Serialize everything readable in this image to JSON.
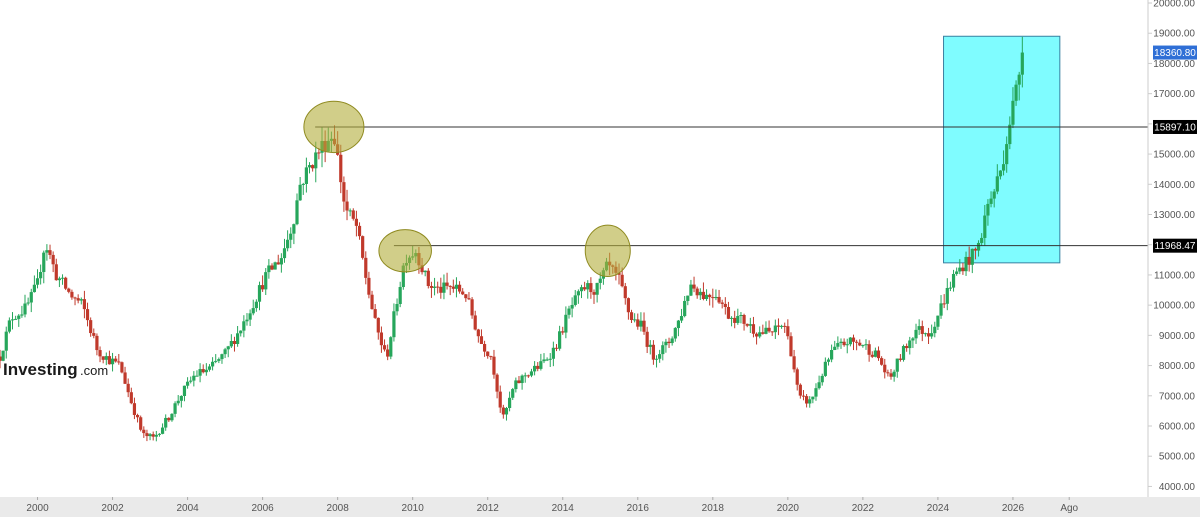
{
  "chart_data": {
    "type": "candlestick",
    "title": "",
    "xlabel": "",
    "ylabel": "",
    "x_unit": "year",
    "xlim": [
      1999.0,
      2029.6
    ],
    "ylim": [
      3650,
      20100
    ],
    "x_ticks": [
      {
        "year": 2000,
        "label": "2000"
      },
      {
        "year": 2002,
        "label": "2002"
      },
      {
        "year": 2004,
        "label": "2004"
      },
      {
        "year": 2006,
        "label": "2006"
      },
      {
        "year": 2008,
        "label": "2008"
      },
      {
        "year": 2010,
        "label": "2010"
      },
      {
        "year": 2012,
        "label": "2012"
      },
      {
        "year": 2014,
        "label": "2014"
      },
      {
        "year": 2016,
        "label": "2016"
      },
      {
        "year": 2018,
        "label": "2018"
      },
      {
        "year": 2020,
        "label": "2020"
      },
      {
        "year": 2022,
        "label": "2022"
      },
      {
        "year": 2024,
        "label": "2024"
      },
      {
        "year": 2026,
        "label": "2026"
      },
      {
        "year": 2027.5,
        "label": "Ago"
      }
    ],
    "y_ticks": [
      {
        "value": 20000,
        "label": "20000.00"
      },
      {
        "value": 19000,
        "label": "19000.00"
      },
      {
        "value": 18000,
        "label": "18000.00"
      },
      {
        "value": 17000,
        "label": "17000.00"
      },
      {
        "value": 16000,
        "label": "16000.00"
      },
      {
        "value": 15000,
        "label": "15000.00"
      },
      {
        "value": 14000,
        "label": "14000.00"
      },
      {
        "value": 13000,
        "label": "13000.00"
      },
      {
        "value": 12000,
        "label": "12000.00"
      },
      {
        "value": 11000,
        "label": "11000.00"
      },
      {
        "value": 10000,
        "label": "10000.00"
      },
      {
        "value": 9000,
        "label": "9000.00"
      },
      {
        "value": 8000,
        "label": "8000.00"
      },
      {
        "value": 7000,
        "label": "7000.00"
      },
      {
        "value": 6000,
        "label": "6000.00"
      },
      {
        "value": 5000,
        "label": "5000.00"
      },
      {
        "value": 4000,
        "label": "4000.00"
      }
    ],
    "price_path": [
      [
        1999.0,
        8300
      ],
      [
        1999.3,
        9600
      ],
      [
        1999.7,
        9900
      ],
      [
        2000.0,
        10700
      ],
      [
        2000.2,
        12100
      ],
      [
        2000.5,
        11000
      ],
      [
        2000.9,
        10300
      ],
      [
        2001.2,
        10000
      ],
      [
        2001.6,
        8500
      ],
      [
        2001.9,
        8200
      ],
      [
        2002.2,
        8000
      ],
      [
        2002.5,
        6800
      ],
      [
        2002.8,
        5700
      ],
      [
        2003.1,
        5600
      ],
      [
        2003.5,
        6300
      ],
      [
        2003.8,
        7000
      ],
      [
        2004.2,
        7700
      ],
      [
        2004.6,
        7900
      ],
      [
        2005.0,
        8400
      ],
      [
        2005.4,
        9200
      ],
      [
        2005.8,
        10200
      ],
      [
        2006.1,
        11000
      ],
      [
        2006.5,
        11600
      ],
      [
        2006.8,
        12700
      ],
      [
        2007.0,
        14000
      ],
      [
        2007.3,
        14700
      ],
      [
        2007.6,
        15300
      ],
      [
        2007.9,
        15700
      ],
      [
        2008.2,
        13200
      ],
      [
        2008.5,
        12600
      ],
      [
        2008.8,
        10600
      ],
      [
        2009.0,
        9400
      ],
      [
        2009.3,
        8200
      ],
      [
        2009.6,
        10300
      ],
      [
        2009.8,
        11600
      ],
      [
        2010.1,
        11800
      ],
      [
        2010.4,
        10700
      ],
      [
        2010.7,
        10500
      ],
      [
        2011.0,
        10600
      ],
      [
        2011.4,
        10400
      ],
      [
        2011.8,
        8800
      ],
      [
        2012.1,
        8300
      ],
      [
        2012.4,
        6200
      ],
      [
        2012.7,
        7300
      ],
      [
        2013.0,
        7700
      ],
      [
        2013.4,
        8000
      ],
      [
        2013.8,
        8600
      ],
      [
        2014.2,
        9900
      ],
      [
        2014.6,
        10600
      ],
      [
        2014.9,
        10500
      ],
      [
        2015.2,
        11300
      ],
      [
        2015.5,
        10800
      ],
      [
        2015.8,
        9600
      ],
      [
        2016.1,
        9300
      ],
      [
        2016.4,
        8300
      ],
      [
        2016.8,
        8700
      ],
      [
        2017.1,
        9500
      ],
      [
        2017.4,
        10700
      ],
      [
        2017.8,
        10300
      ],
      [
        2018.1,
        10400
      ],
      [
        2018.4,
        9700
      ],
      [
        2018.8,
        9500
      ],
      [
        2019.2,
        9100
      ],
      [
        2019.6,
        9100
      ],
      [
        2019.9,
        9400
      ],
      [
        2020.1,
        8400
      ],
      [
        2020.3,
        6900
      ],
      [
        2020.6,
        6800
      ],
      [
        2020.9,
        7700
      ],
      [
        2021.2,
        8500
      ],
      [
        2021.6,
        8800
      ],
      [
        2022.0,
        8700
      ],
      [
        2022.4,
        8300
      ],
      [
        2022.7,
        7500
      ],
      [
        2023.0,
        8300
      ],
      [
        2023.4,
        9200
      ],
      [
        2023.8,
        9100
      ],
      [
        2024.1,
        10000
      ],
      [
        2024.4,
        10900
      ],
      [
        2024.7,
        11400
      ],
      [
        2024.9,
        11600
      ],
      [
        2025.1,
        12000
      ],
      [
        2025.3,
        13200
      ],
      [
        2025.5,
        13800
      ],
      [
        2025.7,
        14600
      ],
      [
        2025.9,
        16000
      ],
      [
        2026.1,
        17200
      ],
      [
        2026.25,
        18360
      ]
    ],
    "horizontal_levels": [
      {
        "value": 15897.1,
        "label": "15897.10",
        "start_year": 2007.4
      },
      {
        "value": 11968.47,
        "label": "11968.47",
        "start_year": 2009.5
      }
    ],
    "last_price": {
      "value": 18360.8,
      "label": "18360.80"
    },
    "highlight_zone": {
      "x_from": 2024.15,
      "x_to": 2027.25,
      "y_from": 11400,
      "y_to": 18900
    },
    "highlight_circles": [
      {
        "center_year": 2007.9,
        "center_value": 15900,
        "radius_years": 0.8,
        "radius_value": 850
      },
      {
        "center_year": 2009.8,
        "center_value": 11800,
        "radius_years": 0.7,
        "radius_value": 700
      },
      {
        "center_year": 2015.2,
        "center_value": 11800,
        "radius_years": 0.6,
        "radius_value": 850
      }
    ],
    "colors": {
      "up": "#26a65b",
      "down": "#c0392b",
      "level_line": "#333333",
      "level_tag": "#000000",
      "last_price_tag": "#2f6fd6",
      "zone": "#7ffcff",
      "zone_stroke": "#3a7fa0",
      "circle_fill": "#b3ad3a",
      "circle_stroke": "#8f8a20",
      "axis_line": "#cccccc",
      "bottom_axis_bg": "#eaeaea"
    }
  },
  "brand": {
    "name": "Investing",
    "domain": ".com"
  }
}
